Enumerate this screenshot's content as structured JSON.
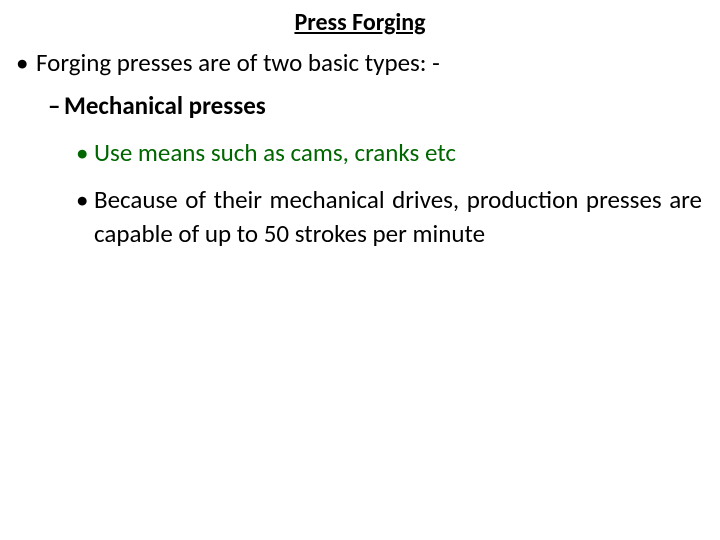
{
  "slide": {
    "title": "Press Forging",
    "bullet1": "Forging presses are of two basic types: -",
    "sub1": "Mechanical presses",
    "point_a": "Use means such as cams, cranks etc",
    "point_b": "Because of their mechanical drives, production presses are capable of up to 50 strokes per minute",
    "colors": {
      "text": "#000000",
      "accent_green": "#006600",
      "background": "#ffffff"
    },
    "font": {
      "title_size_pt": 18,
      "body_size_pt": 19,
      "family": "Calibri"
    }
  }
}
